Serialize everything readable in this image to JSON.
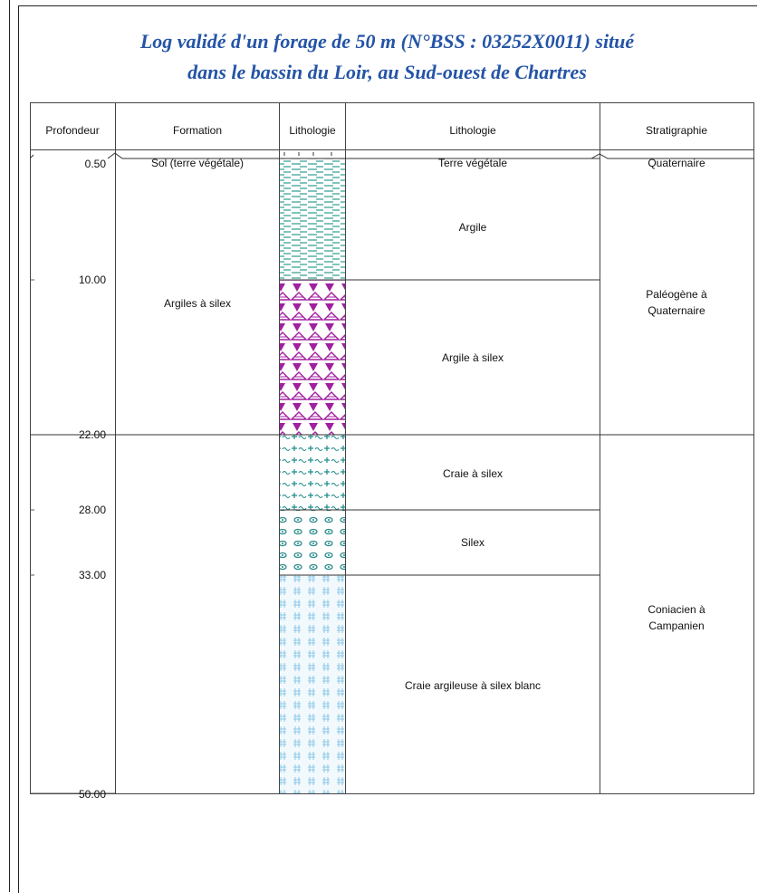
{
  "title": {
    "line1": "Log validé d'un forage de 50 m (N°BSS : 03252X0011) situé",
    "line2": "dans le bassin du Loir, au Sud-ouest de Chartres"
  },
  "headers": {
    "depth": "Profondeur",
    "formation": "Formation",
    "litho_pattern": "Lithologie",
    "litho": "Lithologie",
    "strati": "Stratigraphie"
  },
  "depths": [
    "0.50",
    "10.00",
    "22.00",
    "28.00",
    "33.00",
    "50.00"
  ],
  "formations": [
    {
      "label": "Sol (terre végétale)"
    },
    {
      "label": "Argiles à silex"
    }
  ],
  "lithology_layers": [
    {
      "label": "Terre végétale",
      "pattern": "soil"
    },
    {
      "label": "Argile",
      "pattern": "clay"
    },
    {
      "label": "Argile à silex",
      "pattern": "flint-clay"
    },
    {
      "label": "Craie à silex",
      "pattern": "flint-chalk"
    },
    {
      "label": "Silex",
      "pattern": "silex"
    },
    {
      "label": "Craie argileuse à silex blanc",
      "pattern": "marly-chalk"
    }
  ],
  "stratigraphy": [
    {
      "label": "Quaternaire"
    },
    {
      "label": "Paléogène à",
      "label2": "Quaternaire"
    },
    {
      "label": "Coniacien à",
      "label2": "Campanien"
    }
  ],
  "colors": {
    "title": "#2454a6",
    "clay": "#2a9d8f",
    "flint": "#a020a0",
    "chalk_flint": "#1a8a8a",
    "silex": "#2a8a8a",
    "marly_chalk": "#8cc8e8",
    "marly_chalk_bg": "#f2f9fc",
    "lines": "#222222"
  }
}
